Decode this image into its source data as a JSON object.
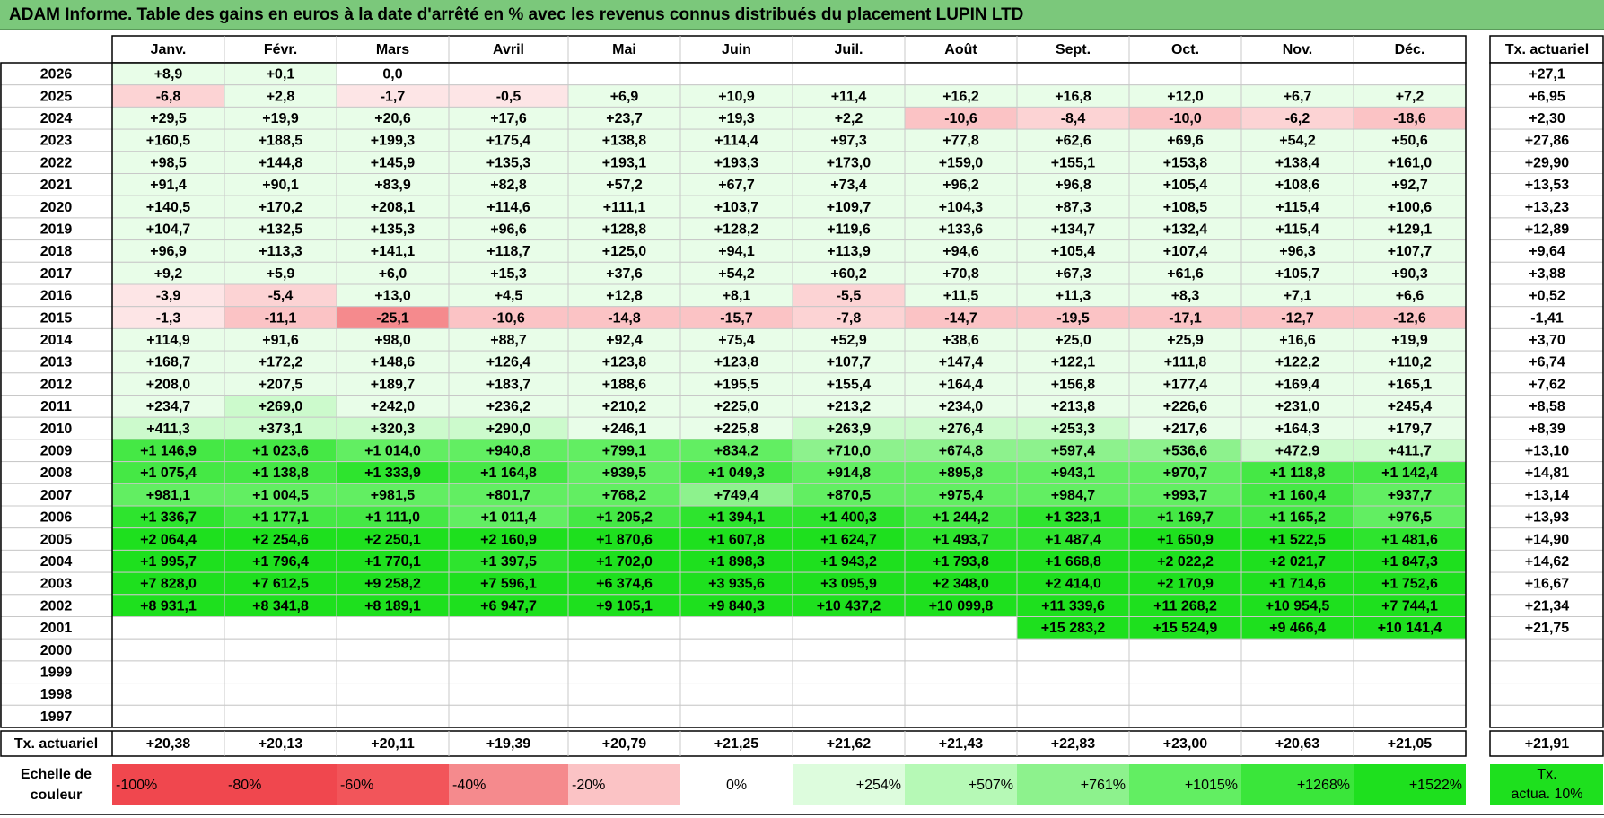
{
  "title": "ADAM Informe. Table des gains en euros à la date d'arrêté en % avec les revenus connus distribués du placement LUPIN LTD",
  "months": [
    "Janv.",
    "Févr.",
    "Mars",
    "Avril",
    "Mai",
    "Juin",
    "Juil.",
    "Août",
    "Sept.",
    "Oct.",
    "Nov.",
    "Déc."
  ],
  "rate_header": "Tx. actuariel",
  "rows": [
    {
      "year": "2026",
      "cells": [
        "+8,9",
        "+0,1",
        "0,0",
        "",
        "",
        "",
        "",
        "",
        "",
        "",
        "",
        ""
      ],
      "rate": "+27,1"
    },
    {
      "year": "2025",
      "cells": [
        "-6,8",
        "+2,8",
        "-1,7",
        "-0,5",
        "+6,9",
        "+10,9",
        "+11,4",
        "+16,2",
        "+16,8",
        "+12,0",
        "+6,7",
        "+7,2"
      ],
      "rate": "+6,95"
    },
    {
      "year": "2024",
      "cells": [
        "+29,5",
        "+19,9",
        "+20,6",
        "+17,6",
        "+23,7",
        "+19,3",
        "+2,2",
        "-10,6",
        "-8,4",
        "-10,0",
        "-6,2",
        "-18,6"
      ],
      "rate": "+2,30"
    },
    {
      "year": "2023",
      "cells": [
        "+160,5",
        "+188,5",
        "+199,3",
        "+175,4",
        "+138,8",
        "+114,4",
        "+97,3",
        "+77,8",
        "+62,6",
        "+69,6",
        "+54,2",
        "+50,6"
      ],
      "rate": "+27,86"
    },
    {
      "year": "2022",
      "cells": [
        "+98,5",
        "+144,8",
        "+145,9",
        "+135,3",
        "+193,1",
        "+193,3",
        "+173,0",
        "+159,0",
        "+155,1",
        "+153,8",
        "+138,4",
        "+161,0"
      ],
      "rate": "+29,90"
    },
    {
      "year": "2021",
      "cells": [
        "+91,4",
        "+90,1",
        "+83,9",
        "+82,8",
        "+57,2",
        "+67,7",
        "+73,4",
        "+96,2",
        "+96,8",
        "+105,4",
        "+108,6",
        "+92,7"
      ],
      "rate": "+13,53"
    },
    {
      "year": "2020",
      "cells": [
        "+140,5",
        "+170,2",
        "+208,1",
        "+114,6",
        "+111,1",
        "+103,7",
        "+109,7",
        "+104,3",
        "+87,3",
        "+108,5",
        "+115,4",
        "+100,6"
      ],
      "rate": "+13,23"
    },
    {
      "year": "2019",
      "cells": [
        "+104,7",
        "+132,5",
        "+135,3",
        "+96,6",
        "+128,8",
        "+128,2",
        "+119,6",
        "+133,6",
        "+134,7",
        "+132,4",
        "+115,4",
        "+129,1"
      ],
      "rate": "+12,89"
    },
    {
      "year": "2018",
      "cells": [
        "+96,9",
        "+113,3",
        "+141,1",
        "+118,7",
        "+125,0",
        "+94,1",
        "+113,9",
        "+94,6",
        "+105,4",
        "+107,4",
        "+96,3",
        "+107,7"
      ],
      "rate": "+9,64"
    },
    {
      "year": "2017",
      "cells": [
        "+9,2",
        "+5,9",
        "+6,0",
        "+15,3",
        "+37,6",
        "+54,2",
        "+60,2",
        "+70,8",
        "+67,3",
        "+61,6",
        "+105,7",
        "+90,3"
      ],
      "rate": "+3,88"
    },
    {
      "year": "2016",
      "cells": [
        "-3,9",
        "-5,4",
        "+13,0",
        "+4,5",
        "+12,8",
        "+8,1",
        "-5,5",
        "+11,5",
        "+11,3",
        "+8,3",
        "+7,1",
        "+6,6"
      ],
      "rate": "+0,52"
    },
    {
      "year": "2015",
      "cells": [
        "-1,3",
        "-11,1",
        "-25,1",
        "-10,6",
        "-14,8",
        "-15,7",
        "-7,8",
        "-14,7",
        "-19,5",
        "-17,1",
        "-12,7",
        "-12,6"
      ],
      "rate": "-1,41"
    },
    {
      "year": "2014",
      "cells": [
        "+114,9",
        "+91,6",
        "+98,0",
        "+88,7",
        "+92,4",
        "+75,4",
        "+52,9",
        "+38,6",
        "+25,0",
        "+25,9",
        "+16,6",
        "+19,9"
      ],
      "rate": "+3,70"
    },
    {
      "year": "2013",
      "cells": [
        "+168,7",
        "+172,2",
        "+148,6",
        "+126,4",
        "+123,8",
        "+123,8",
        "+107,7",
        "+147,4",
        "+122,1",
        "+111,8",
        "+122,2",
        "+110,2"
      ],
      "rate": "+6,74"
    },
    {
      "year": "2012",
      "cells": [
        "+208,0",
        "+207,5",
        "+189,7",
        "+183,7",
        "+188,6",
        "+195,5",
        "+155,4",
        "+164,4",
        "+156,8",
        "+177,4",
        "+169,4",
        "+165,1"
      ],
      "rate": "+7,62"
    },
    {
      "year": "2011",
      "cells": [
        "+234,7",
        "+269,0",
        "+242,0",
        "+236,2",
        "+210,2",
        "+225,0",
        "+213,2",
        "+234,0",
        "+213,8",
        "+226,6",
        "+231,0",
        "+245,4"
      ],
      "rate": "+8,58"
    },
    {
      "year": "2010",
      "cells": [
        "+411,3",
        "+373,1",
        "+320,3",
        "+290,0",
        "+246,1",
        "+225,8",
        "+263,9",
        "+276,4",
        "+253,3",
        "+217,6",
        "+164,3",
        "+179,7"
      ],
      "rate": "+8,39"
    },
    {
      "year": "2009",
      "cells": [
        "+1 146,9",
        "+1 023,6",
        "+1 014,0",
        "+940,8",
        "+799,1",
        "+834,2",
        "+710,0",
        "+674,8",
        "+597,4",
        "+536,6",
        "+472,9",
        "+411,7"
      ],
      "rate": "+13,10"
    },
    {
      "year": "2008",
      "cells": [
        "+1 075,4",
        "+1 138,8",
        "+1 333,9",
        "+1 164,8",
        "+939,5",
        "+1 049,3",
        "+914,8",
        "+895,8",
        "+943,1",
        "+970,7",
        "+1 118,8",
        "+1 142,4"
      ],
      "rate": "+14,81"
    },
    {
      "year": "2007",
      "cells": [
        "+981,1",
        "+1 004,5",
        "+981,5",
        "+801,7",
        "+768,2",
        "+749,4",
        "+870,5",
        "+975,4",
        "+984,7",
        "+993,7",
        "+1 160,4",
        "+937,7"
      ],
      "rate": "+13,14"
    },
    {
      "year": "2006",
      "cells": [
        "+1 336,7",
        "+1 177,1",
        "+1 111,0",
        "+1 011,4",
        "+1 205,2",
        "+1 394,1",
        "+1 400,3",
        "+1 244,2",
        "+1 323,1",
        "+1 169,7",
        "+1 165,2",
        "+976,5"
      ],
      "rate": "+13,93"
    },
    {
      "year": "2005",
      "cells": [
        "+2 064,4",
        "+2 254,6",
        "+2 250,1",
        "+2 160,9",
        "+1 870,6",
        "+1 607,8",
        "+1 624,7",
        "+1 493,7",
        "+1 487,4",
        "+1 650,9",
        "+1 522,5",
        "+1 481,6"
      ],
      "rate": "+14,90"
    },
    {
      "year": "2004",
      "cells": [
        "+1 995,7",
        "+1 796,4",
        "+1 770,1",
        "+1 397,5",
        "+1 702,0",
        "+1 898,3",
        "+1 943,2",
        "+1 793,8",
        "+1 668,8",
        "+2 022,2",
        "+2 021,7",
        "+1 847,3"
      ],
      "rate": "+14,62"
    },
    {
      "year": "2003",
      "cells": [
        "+7 828,0",
        "+7 612,5",
        "+9 258,2",
        "+7 596,1",
        "+6 374,6",
        "+3 935,6",
        "+3 095,9",
        "+2 348,0",
        "+2 414,0",
        "+2 170,9",
        "+1 714,6",
        "+1 752,6"
      ],
      "rate": "+16,67"
    },
    {
      "year": "2002",
      "cells": [
        "+8 931,1",
        "+8 341,8",
        "+8 189,1",
        "+6 947,7",
        "+9 105,1",
        "+9 840,3",
        "+10 437,2",
        "+10 099,8",
        "+11 339,6",
        "+11 268,2",
        "+10 954,5",
        "+7 744,1"
      ],
      "rate": "+21,34"
    },
    {
      "year": "2001",
      "cells": [
        "",
        "",
        "",
        "",
        "",
        "",
        "",
        "",
        "+15 283,2",
        "+15 524,9",
        "+9 466,4",
        "+10 141,4"
      ],
      "rate": "+21,75"
    },
    {
      "year": "2000",
      "cells": [
        "",
        "",
        "",
        "",
        "",
        "",
        "",
        "",
        "",
        "",
        "",
        ""
      ],
      "rate": ""
    },
    {
      "year": "1999",
      "cells": [
        "",
        "",
        "",
        "",
        "",
        "",
        "",
        "",
        "",
        "",
        "",
        ""
      ],
      "rate": ""
    },
    {
      "year": "1998",
      "cells": [
        "",
        "",
        "",
        "",
        "",
        "",
        "",
        "",
        "",
        "",
        "",
        ""
      ],
      "rate": ""
    },
    {
      "year": "1997",
      "cells": [
        "",
        "",
        "",
        "",
        "",
        "",
        "",
        "",
        "",
        "",
        "",
        ""
      ],
      "rate": ""
    }
  ],
  "summary": {
    "label": "Tx. actuariel",
    "cells": [
      "+20,38",
      "+20,13",
      "+20,11",
      "+19,39",
      "+20,79",
      "+21,25",
      "+21,62",
      "+21,43",
      "+22,83",
      "+23,00",
      "+20,63",
      "+21,05"
    ],
    "rate": "+21,91"
  },
  "legend": {
    "label_line1": "Echelle de",
    "label_line2": "couleur",
    "items": [
      {
        "text": "-100%",
        "color": "#f0474e",
        "align": "left"
      },
      {
        "text": "-80%",
        "color": "#f0474e",
        "align": "left"
      },
      {
        "text": "-60%",
        "color": "#f2555a",
        "align": "left"
      },
      {
        "text": "-40%",
        "color": "#f58a8d",
        "align": "left"
      },
      {
        "text": "-20%",
        "color": "#fbc3c5",
        "align": "left"
      },
      {
        "text": "0%",
        "color": "#ffffff",
        "align": "center"
      },
      {
        "text": "+254%",
        "color": "#ddfcdd",
        "align": "right"
      },
      {
        "text": "+507%",
        "color": "#b6f9b6",
        "align": "right"
      },
      {
        "text": "+761%",
        "color": "#8df28d",
        "align": "right"
      },
      {
        "text": "+1015%",
        "color": "#62ee62",
        "align": "right"
      },
      {
        "text": "+1268%",
        "color": "#3ae63a",
        "align": "right"
      },
      {
        "text": "+1522%",
        "color": "#1ee01e",
        "align": "right"
      }
    ],
    "rate_line1": "Tx.",
    "rate_line2": "actua. 10%",
    "rate_color": "#1ee01e"
  },
  "colors": {
    "title_bg": "#7bc87b",
    "grid_line": "#c8c8c8",
    "border": "#000000"
  }
}
